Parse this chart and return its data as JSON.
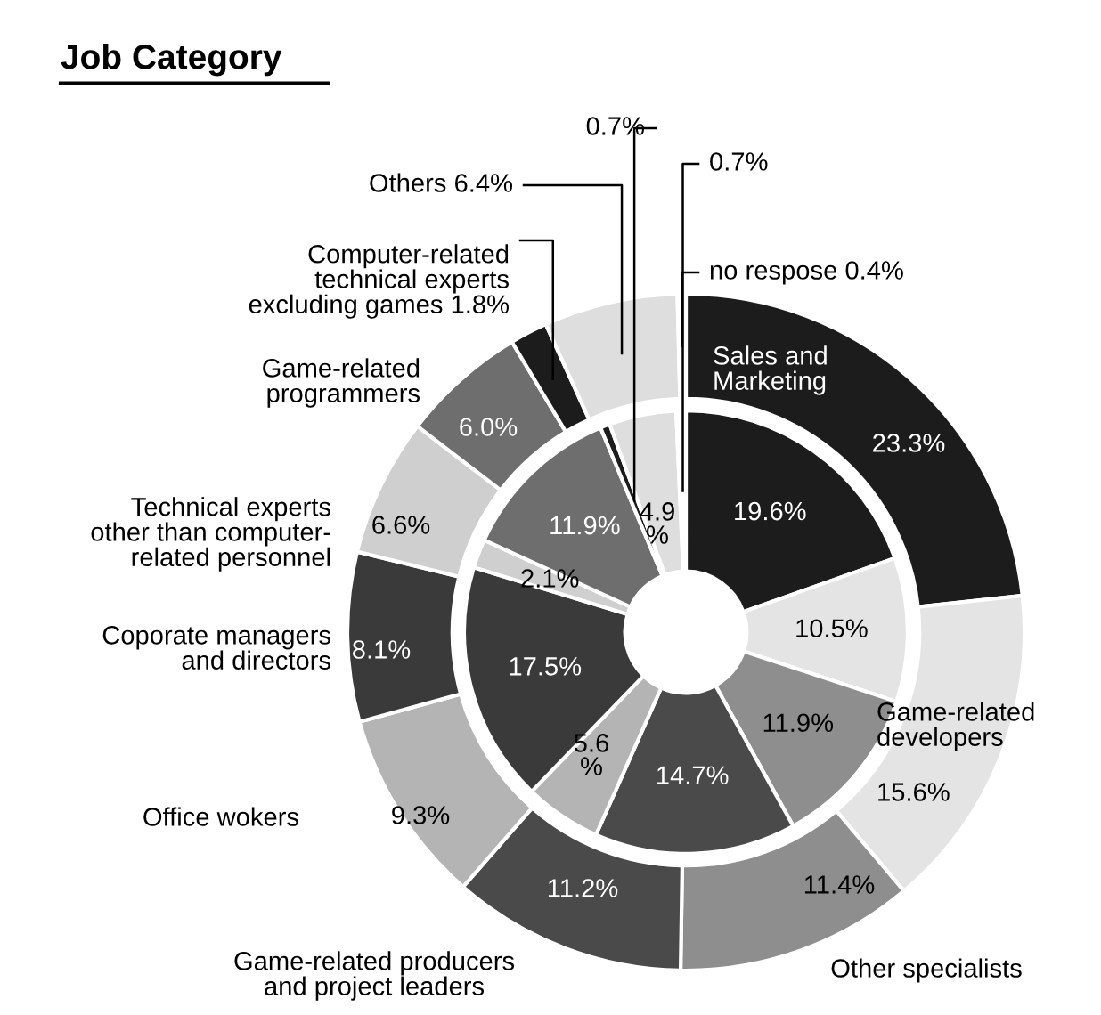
{
  "chart_data": {
    "type": "donut",
    "title": "Job Category",
    "categories": [
      "Sales and\nMarketing",
      "Game-related\ndevelopers",
      "Other specialists",
      "Game-related producers\nand project leaders",
      "Office wokers",
      "Coporate managers\nand directors",
      "Technical experts\nother than computer-\nrelated personnel",
      "Game-related\nprogrammers",
      "Computer-related\ntechnical experts\nexcluding games 1.8%",
      "Others 6.4%",
      "no respose 0.4%"
    ],
    "colors": [
      "#1c1c1c",
      "#e4e4e4",
      "#8e8e8e",
      "#4a4a4a",
      "#b4b4b4",
      "#3a3a3a",
      "#cfcfcf",
      "#6e6e6e",
      "#1c1c1c",
      "#dedede",
      "#ffffff"
    ],
    "series": [
      {
        "values": [
          23.3,
          15.6,
          11.4,
          11.2,
          9.3,
          8.1,
          6.6,
          6.0,
          1.8,
          6.4,
          0.4
        ],
        "value_labels": [
          "23.3%",
          "15.6%",
          "11.4%",
          "11.2%",
          "9.3%",
          "8.1%",
          "6.6%",
          "6.0%",
          null,
          null,
          null
        ]
      },
      {
        "values": [
          19.6,
          10.5,
          11.9,
          14.7,
          5.6,
          17.5,
          2.1,
          11.9,
          0.7,
          4.9,
          0.7
        ],
        "value_labels": [
          "19.6%",
          "10.5%",
          "11.9%",
          "14.7%",
          "5.6\n%",
          "17.5%",
          "2.1%",
          "11.9%",
          "0.7%",
          "4.9\n%",
          "0.7%"
        ]
      }
    ]
  }
}
